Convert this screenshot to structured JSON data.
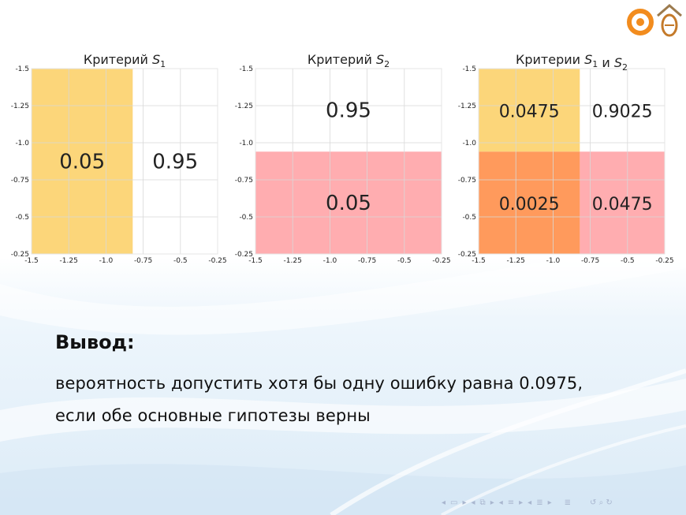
{
  "chart_data": [
    {
      "type": "heatmap",
      "title": "Критерий S1",
      "xlim": [
        -1.5,
        -0.25
      ],
      "ylim": [
        -1.5,
        -0.25
      ],
      "x_ticks": [
        "-1.5",
        "-1.25",
        "-1.0",
        "-0.75",
        "-0.5",
        "-0.25"
      ],
      "y_ticks": [
        "-1.5",
        "-1.25",
        "-1.0",
        "-0.75",
        "-0.5",
        "-0.25"
      ],
      "x_split": -0.82,
      "y_split": null,
      "regions": [
        {
          "x": [
            -1.5,
            -0.82
          ],
          "y": [
            -1.5,
            -0.25
          ],
          "value": "0.05",
          "color": "#fcd67a"
        },
        {
          "x": [
            -0.82,
            -0.25
          ],
          "y": [
            -1.5,
            -0.25
          ],
          "value": "0.95",
          "color": "#ffffff"
        }
      ],
      "grid": true
    },
    {
      "type": "heatmap",
      "title": "Критерий S2",
      "xlim": [
        -1.5,
        -0.25
      ],
      "ylim": [
        -1.5,
        -0.25
      ],
      "x_ticks": [
        "-1.5",
        "-1.25",
        "-1.0",
        "-0.75",
        "-0.5",
        "-0.25"
      ],
      "y_ticks": [
        "-1.5",
        "-1.25",
        "-1.0",
        "-0.75",
        "-0.5",
        "-0.25"
      ],
      "x_split": null,
      "y_split": -0.94,
      "regions": [
        {
          "x": [
            -1.5,
            -0.25
          ],
          "y": [
            -1.5,
            -0.94
          ],
          "value": "0.95",
          "color": "#ffffff"
        },
        {
          "x": [
            -1.5,
            -0.25
          ],
          "y": [
            -0.94,
            -0.25
          ],
          "value": "0.05",
          "color": "#ffadb0"
        }
      ],
      "grid": true
    },
    {
      "type": "heatmap",
      "title": "Критерии S1 и S2",
      "xlim": [
        -1.5,
        -0.25
      ],
      "ylim": [
        -1.5,
        -0.25
      ],
      "x_ticks": [
        "-1.5",
        "-1.25",
        "-1.0",
        "-0.75",
        "-0.5",
        "-0.25"
      ],
      "y_ticks": [
        "-1.5",
        "-1.25",
        "-1.0",
        "-0.75",
        "-0.5",
        "-0.25"
      ],
      "x_split": -0.82,
      "y_split": -0.94,
      "regions": [
        {
          "x": [
            -1.5,
            -0.82
          ],
          "y": [
            -1.5,
            -0.94
          ],
          "value": "0.0475",
          "color": "#fcd67a"
        },
        {
          "x": [
            -0.82,
            -0.25
          ],
          "y": [
            -1.5,
            -0.94
          ],
          "value": "0.9025",
          "color": "#ffffff"
        },
        {
          "x": [
            -1.5,
            -0.82
          ],
          "y": [
            -0.94,
            -0.25
          ],
          "value": "0.0025",
          "color": "#ff9a5c"
        },
        {
          "x": [
            -0.82,
            -0.25
          ],
          "y": [
            -0.94,
            -0.25
          ],
          "value": "0.0475",
          "color": "#ffadb0"
        }
      ],
      "grid": true
    }
  ],
  "conclusion": {
    "heading": "Вывод:",
    "line1": "вероятность допустить хотя бы одну ошибку равна 0.0975,",
    "line2": "если обе основные гипотезы верны"
  },
  "icons": {
    "logo_left": "spiral-logo",
    "logo_right": "house-logo",
    "nav": [
      "frame-prev-icon",
      "frame-next-icon",
      "subsection-prev-icon",
      "subsection-next-icon",
      "section-prev-icon",
      "section-next-icon",
      "subsubsection-prev-icon",
      "subsubsection-next-icon",
      "toc-icon",
      "search-icon"
    ]
  },
  "colors": {
    "orange": "#fcd67a",
    "pink": "#ffadb0",
    "overlap": "#ff9a5c",
    "grid": "#e3e3e3",
    "nav": "#a9b6cf"
  }
}
